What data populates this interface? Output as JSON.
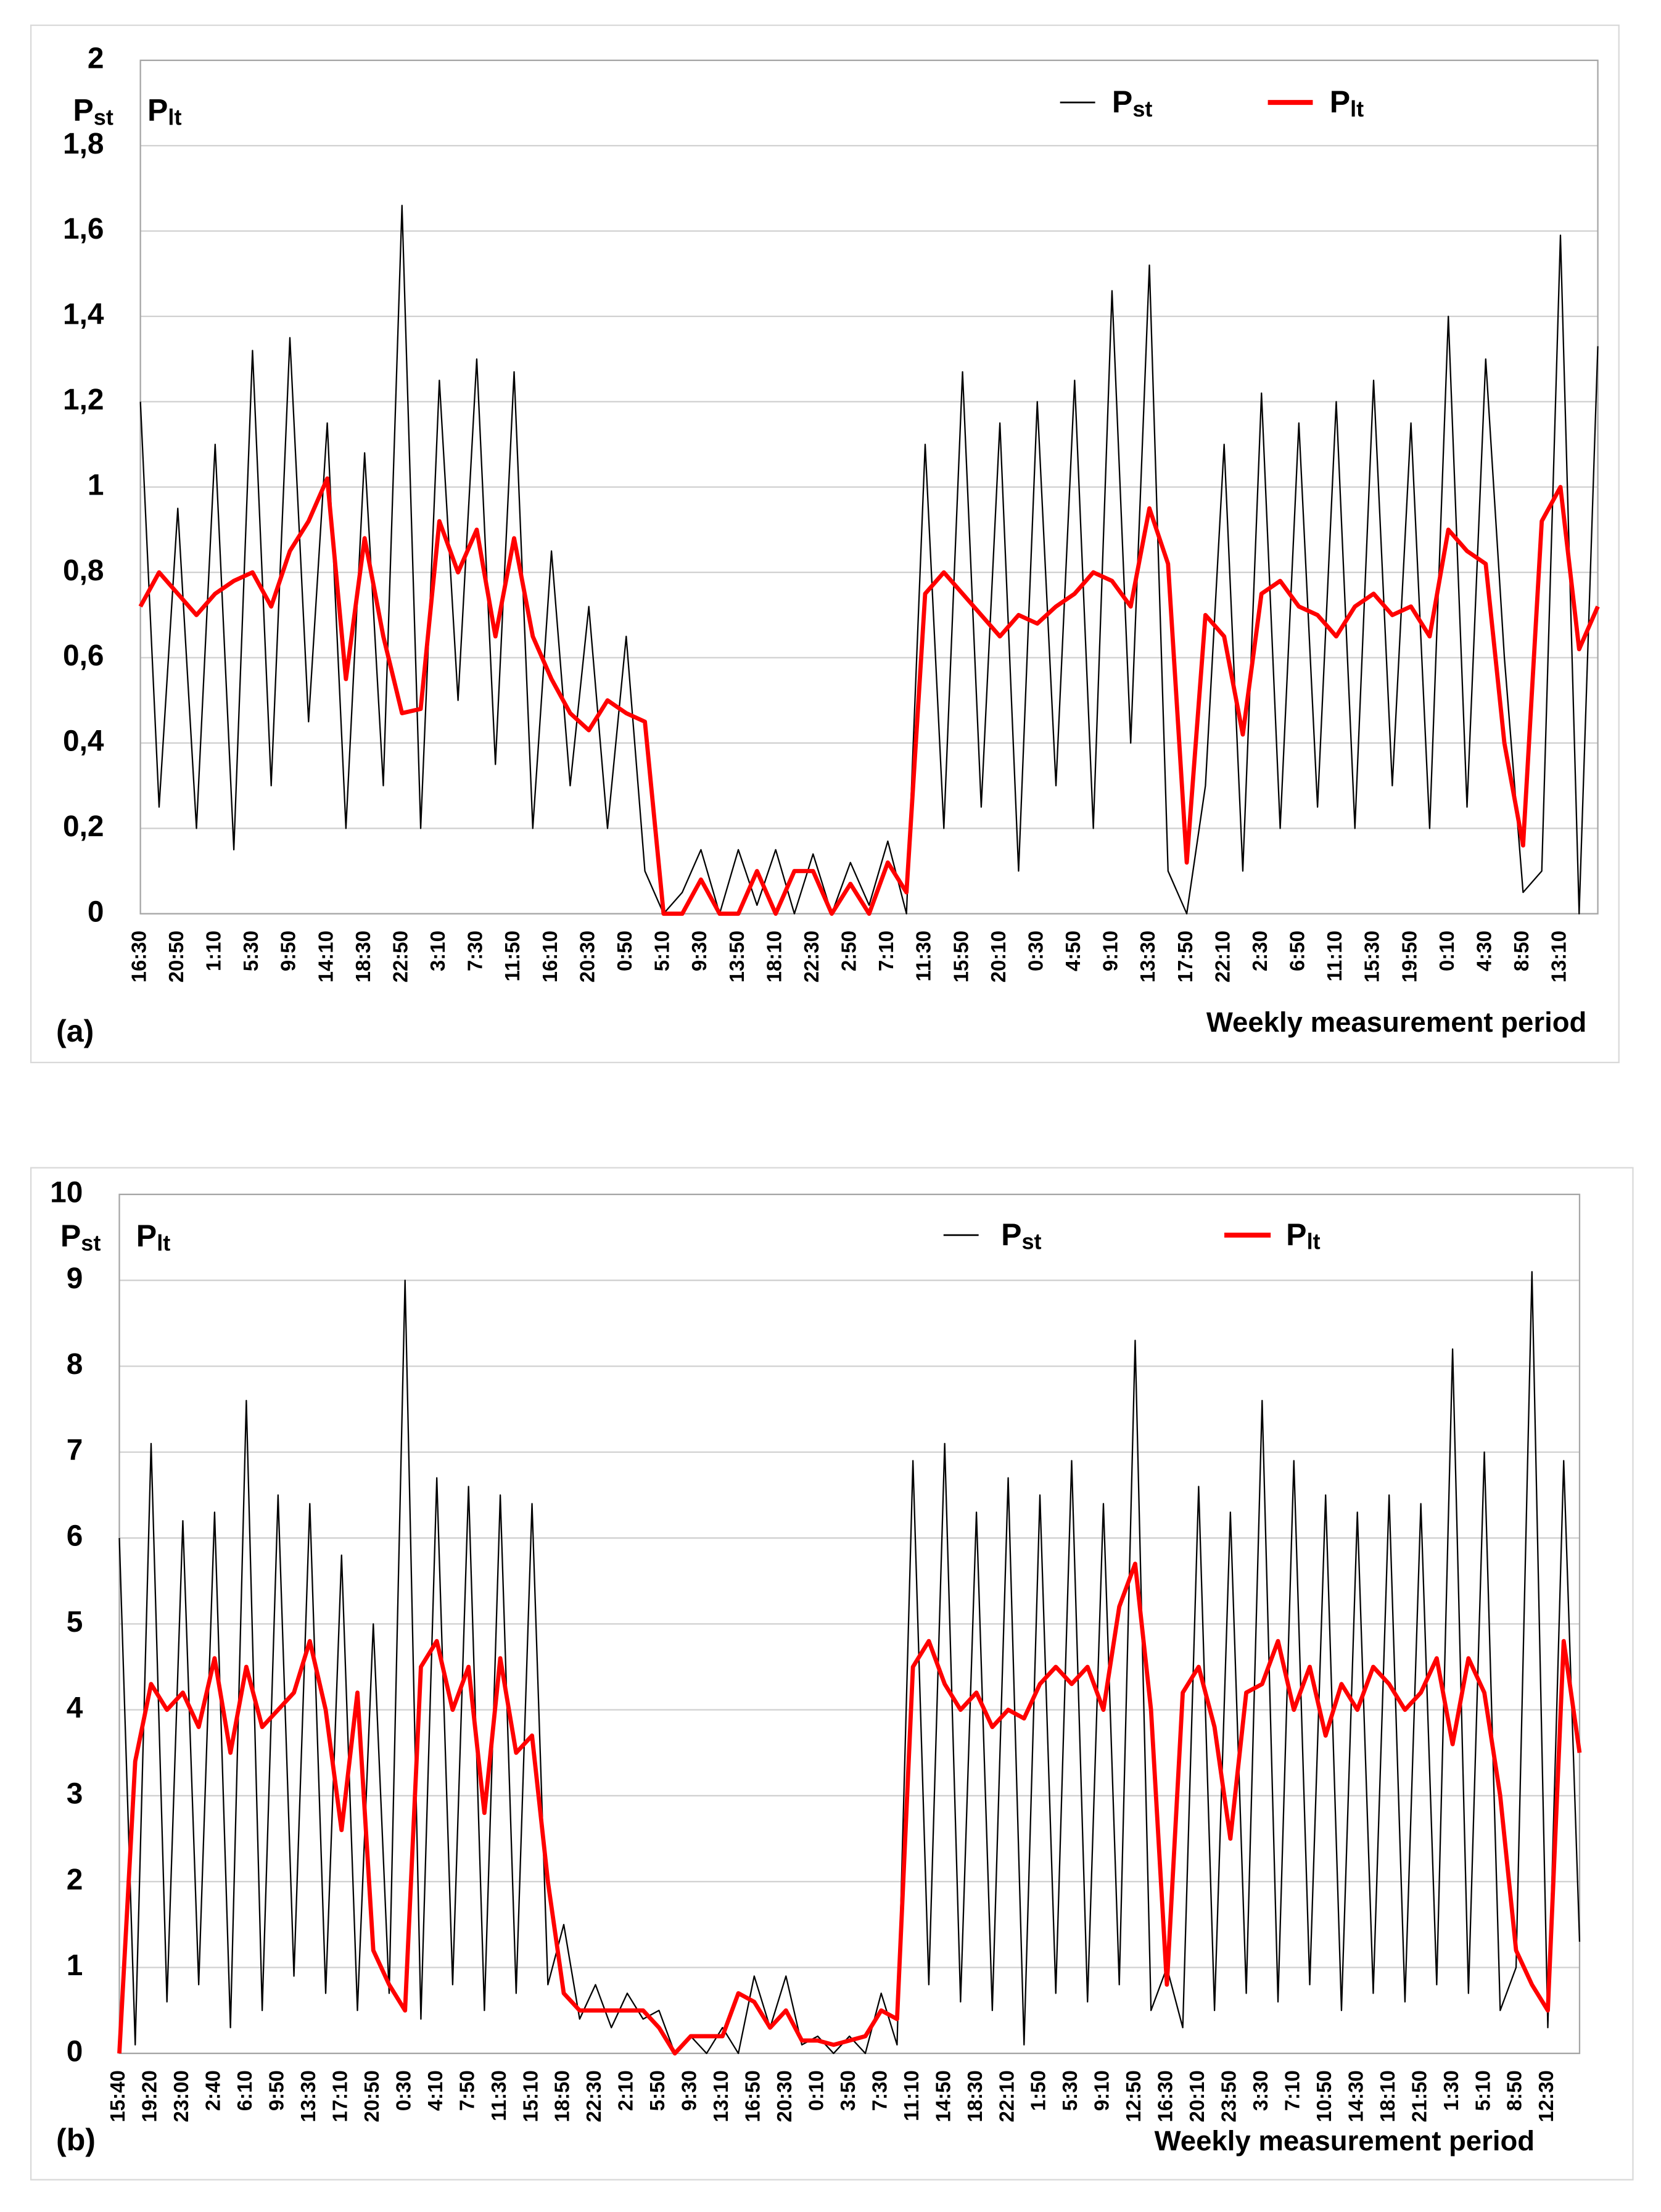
{
  "chart_data": [
    {
      "type": "line",
      "label": "(a)",
      "x_label": "Weekly measurement period",
      "y_labels": [
        "Pst",
        "Plt"
      ],
      "categories": [
        "16:30",
        null,
        "20:50",
        null,
        "1:10",
        null,
        "5:30",
        null,
        "9:50",
        null,
        "14:10",
        null,
        "18:30",
        null,
        "22:50",
        null,
        "3:10",
        null,
        "7:30",
        null,
        "11:50",
        null,
        "16:10",
        null,
        "20:30",
        null,
        "0:50",
        null,
        "5:10",
        null,
        "9:30",
        null,
        "13:50",
        null,
        "18:10",
        null,
        "22:30",
        null,
        "2:50",
        null,
        "7:10",
        null,
        "11:30",
        null,
        "15:50",
        null,
        "20:10",
        null,
        "0:30",
        null,
        "4:50",
        null,
        "9:10",
        null,
        "13:30",
        null,
        "17:50",
        null,
        "22:10",
        null,
        "2:30",
        null,
        "6:50",
        null,
        "11:10",
        null,
        "15:30",
        null,
        "19:50",
        null,
        "0:10",
        null,
        "4:30",
        null,
        "8:50",
        null,
        "13:10",
        null,
        null
      ],
      "series": [
        {
          "name": "Pst",
          "color": "#000000",
          "values": [
            1.2,
            0.25,
            0.95,
            0.2,
            1.1,
            0.15,
            1.32,
            0.3,
            1.35,
            0.45,
            1.15,
            0.2,
            1.08,
            0.3,
            1.66,
            0.2,
            1.25,
            0.5,
            1.3,
            0.35,
            1.27,
            0.2,
            0.85,
            0.3,
            0.72,
            0.2,
            0.65,
            0.1,
            0.0,
            0.05,
            0.15,
            0.0,
            0.15,
            0.02,
            0.15,
            0.0,
            0.14,
            0.0,
            0.12,
            0.02,
            0.17,
            0.0,
            1.1,
            0.2,
            1.27,
            0.25,
            1.15,
            0.1,
            1.2,
            0.3,
            1.25,
            0.2,
            1.46,
            0.4,
            1.52,
            0.1,
            0.0,
            0.3,
            1.1,
            0.1,
            1.22,
            0.2,
            1.15,
            0.25,
            1.2,
            0.2,
            1.25,
            0.3,
            1.15,
            0.2,
            1.4,
            0.25,
            1.3,
            0.6,
            0.05,
            0.1,
            1.59,
            0.0,
            1.33
          ]
        },
        {
          "name": "Plt",
          "color": "#ff0000",
          "values": [
            0.72,
            0.8,
            0.75,
            0.7,
            0.75,
            0.78,
            0.8,
            0.72,
            0.85,
            0.92,
            1.02,
            0.55,
            0.88,
            0.65,
            0.47,
            0.48,
            0.92,
            0.8,
            0.9,
            0.65,
            0.88,
            0.65,
            0.55,
            0.47,
            0.43,
            0.5,
            0.47,
            0.45,
            0.0,
            0.0,
            0.08,
            0.0,
            0.0,
            0.1,
            0.0,
            0.1,
            0.1,
            0.0,
            0.07,
            0.0,
            0.12,
            0.05,
            0.75,
            0.8,
            0.75,
            0.7,
            0.65,
            0.7,
            0.68,
            0.72,
            0.75,
            0.8,
            0.78,
            0.72,
            0.95,
            0.82,
            0.12,
            0.7,
            0.65,
            0.42,
            0.75,
            0.78,
            0.72,
            0.7,
            0.65,
            0.72,
            0.75,
            0.7,
            0.72,
            0.65,
            0.9,
            0.85,
            0.82,
            0.4,
            0.16,
            0.92,
            1.0,
            0.62,
            0.72
          ]
        }
      ],
      "ylim": [
        0,
        2
      ],
      "yticks": [
        0,
        {
          "value": 0.2,
          "label": "0,2"
        },
        {
          "value": 0.4,
          "label": "0,4"
        },
        {
          "value": 0.6,
          "label": "0,6"
        },
        {
          "value": 0.8,
          "label": "0,8"
        },
        1,
        {
          "value": 1.2,
          "label": "1,2"
        },
        {
          "value": 1.4,
          "label": "1,4"
        },
        {
          "value": 1.6,
          "label": "1,6"
        },
        {
          "value": 1.8,
          "label": "1,8"
        },
        2
      ],
      "grid": true
    },
    {
      "type": "line",
      "label": "(b)",
      "x_label": "Weekly measurement period",
      "y_labels": [
        "Pst",
        "Plt"
      ],
      "categories": [
        "15:40",
        null,
        "19:20",
        null,
        "23:00",
        null,
        "2:40",
        null,
        "6:10",
        null,
        "9:50",
        null,
        "13:30",
        null,
        "17:10",
        null,
        "20:50",
        null,
        "0:30",
        null,
        "4:10",
        null,
        "7:50",
        null,
        "11:30",
        null,
        "15:10",
        null,
        "18:50",
        null,
        "22:30",
        null,
        "2:10",
        null,
        "5:50",
        null,
        "9:30",
        null,
        "13:10",
        null,
        "16:50",
        null,
        "20:30",
        null,
        "0:10",
        null,
        "3:50",
        null,
        "7:30",
        null,
        "11:10",
        null,
        "14:50",
        null,
        "18:30",
        null,
        "22:10",
        null,
        "1:50",
        null,
        "5:30",
        null,
        "9:10",
        null,
        "12:50",
        null,
        "16:30",
        null,
        "20:10",
        null,
        "23:50",
        null,
        "3:30",
        null,
        "7:10",
        null,
        "10:50",
        null,
        "14:30",
        null,
        "18:10",
        null,
        "21:50",
        null,
        "1:30",
        null,
        "5:10",
        null,
        "8:50",
        null,
        "12:30",
        null,
        null
      ],
      "series": [
        {
          "name": "Pst",
          "color": "#000000",
          "values": [
            6.0,
            0.1,
            7.1,
            0.6,
            6.2,
            0.8,
            6.3,
            0.3,
            7.6,
            0.5,
            6.5,
            0.9,
            6.4,
            0.7,
            5.8,
            0.5,
            5.0,
            0.7,
            9.0,
            0.4,
            6.7,
            0.8,
            6.6,
            0.5,
            6.5,
            0.7,
            6.4,
            0.8,
            1.5,
            0.4,
            0.8,
            0.3,
            0.7,
            0.4,
            0.5,
            0.0,
            0.2,
            0.0,
            0.3,
            0.0,
            0.9,
            0.3,
            0.9,
            0.1,
            0.2,
            0.0,
            0.2,
            0.0,
            0.7,
            0.1,
            6.9,
            0.8,
            7.1,
            0.6,
            6.3,
            0.5,
            6.7,
            0.1,
            6.5,
            0.7,
            6.9,
            0.6,
            6.4,
            0.8,
            8.3,
            0.5,
            1.0,
            0.3,
            6.6,
            0.5,
            6.3,
            0.7,
            7.6,
            0.6,
            6.9,
            0.8,
            6.5,
            0.5,
            6.3,
            0.7,
            6.5,
            0.6,
            6.4,
            0.8,
            8.2,
            0.7,
            7.0,
            0.5,
            1.0,
            9.1,
            0.3,
            6.9,
            1.3
          ]
        },
        {
          "name": "Plt",
          "color": "#ff0000",
          "values": [
            0.0,
            3.4,
            4.3,
            4.0,
            4.2,
            3.8,
            4.6,
            3.5,
            4.5,
            3.8,
            4.0,
            4.2,
            4.8,
            4.0,
            2.6,
            4.2,
            1.2,
            0.8,
            0.5,
            4.5,
            4.8,
            4.0,
            4.5,
            2.8,
            4.6,
            3.5,
            3.7,
            2.0,
            0.7,
            0.5,
            0.5,
            0.5,
            0.5,
            0.5,
            0.3,
            0.0,
            0.2,
            0.2,
            0.2,
            0.7,
            0.6,
            0.3,
            0.5,
            0.15,
            0.15,
            0.1,
            0.15,
            0.2,
            0.5,
            0.4,
            4.5,
            4.8,
            4.3,
            4.0,
            4.2,
            3.8,
            4.0,
            3.9,
            4.3,
            4.5,
            4.3,
            4.5,
            4.0,
            5.2,
            5.7,
            4.0,
            0.8,
            4.2,
            4.5,
            3.8,
            2.5,
            4.2,
            4.3,
            4.8,
            4.0,
            4.5,
            3.7,
            4.3,
            4.0,
            4.5,
            4.3,
            4.0,
            4.2,
            4.6,
            3.6,
            4.6,
            4.2,
            3.0,
            1.2,
            0.8,
            0.5,
            4.8,
            3.5
          ]
        }
      ],
      "ylim": [
        0,
        10
      ],
      "yticks": [
        0,
        1,
        2,
        3,
        4,
        5,
        6,
        7,
        8,
        9,
        10
      ],
      "grid": true
    }
  ]
}
